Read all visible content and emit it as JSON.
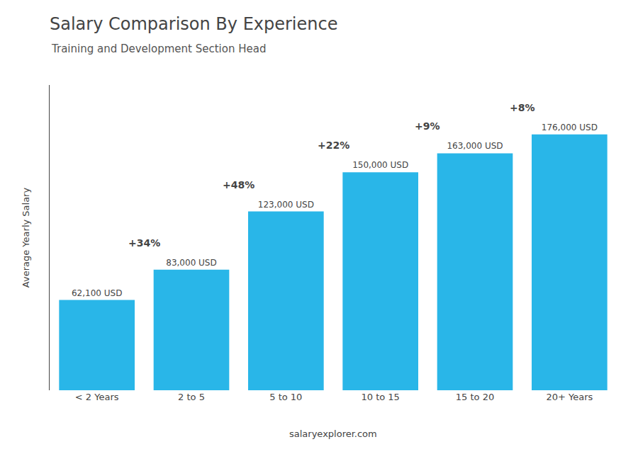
{
  "chart_data": {
    "type": "bar",
    "title": "Salary Comparison By Experience",
    "subtitle": "Training and Development Section Head",
    "categories": [
      "< 2 Years",
      "2 to 5",
      "5 to 10",
      "10 to 15",
      "15 to 20",
      "20+ Years"
    ],
    "values": [
      62100,
      83000,
      123000,
      150000,
      163000,
      176000
    ],
    "value_labels": [
      "62,100 USD",
      "83,000 USD",
      "123,000 USD",
      "150,000 USD",
      "163,000 USD",
      "176,000 USD"
    ],
    "data_labels": true,
    "color": "#29B6E8",
    "ylabel": "Average Yearly Salary",
    "ylim": [
      0,
      210000
    ],
    "tick_labels": "x",
    "grid": false,
    "annotations": [
      "+34%",
      "+48%",
      "+22%",
      "+9%",
      "+8%"
    ],
    "footer": "salaryexplorer.com"
  }
}
